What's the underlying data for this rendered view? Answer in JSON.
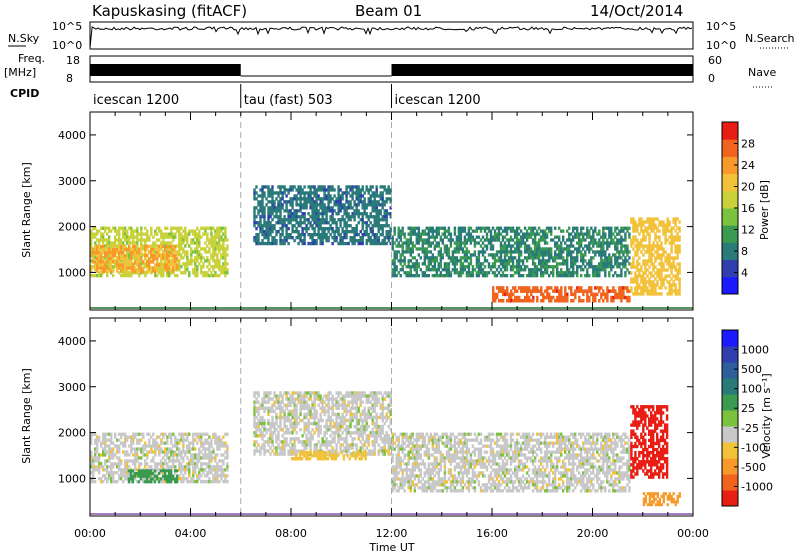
{
  "header": {
    "title": "Kapuskasing (fitACF)",
    "beam": "Beam 01",
    "date": "14/Oct/2014"
  },
  "summary_panel": {
    "nsky_label": "N.Sky",
    "nsky_ticks": [
      "10^5",
      "10^0"
    ],
    "nsearch_label": "N.Search",
    "nsearch_ticks": [
      "10^5",
      "10^0"
    ],
    "freq_label": "Freq.",
    "freq_unit": "[MHz]",
    "freq_ticks": [
      "18",
      "8"
    ],
    "nave_label": "Nave",
    "nave_ticks": [
      "60",
      "0"
    ],
    "cpid_label": "CPID"
  },
  "cpid_segments": [
    {
      "label": "icescan 1200",
      "start_h": 0,
      "end_h": 6
    },
    {
      "label": "tau (fast) 503",
      "start_h": 6,
      "end_h": 12
    },
    {
      "label": "icescan 1200",
      "start_h": 12,
      "end_h": 24
    }
  ],
  "time_axis": {
    "label": "Time UT",
    "ticks": [
      "00:00",
      "04:00",
      "08:00",
      "12:00",
      "16:00",
      "20:00",
      "00:00"
    ],
    "tick_hours": [
      0,
      4,
      8,
      12,
      16,
      20,
      24
    ]
  },
  "range_axis": {
    "label": "Slant Range [km]",
    "ticks": [
      "1000",
      "2000",
      "3000",
      "4000"
    ],
    "tick_values": [
      1000,
      2000,
      3000,
      4000
    ],
    "range": [
      180,
      4500
    ]
  },
  "power_scale": {
    "label": "Power [dB]",
    "ticks": [
      "28",
      "24",
      "20",
      "16",
      "12",
      "8",
      "4"
    ],
    "colors": [
      "#1a1aff",
      "#2f3fb0",
      "#2a7a7a",
      "#3a9a4f",
      "#7cc23e",
      "#c9d23a",
      "#f2c23a",
      "#f79a2a",
      "#f0641e",
      "#e81e14"
    ]
  },
  "velocity_scale": {
    "label": "Velocity  [m s⁻¹]",
    "ticks": [
      "1000",
      "500",
      "100",
      "25",
      "-25",
      "-100",
      "-500",
      "-1000"
    ],
    "colors": [
      "#1a1aff",
      "#2f3fb0",
      "#2f5f9a",
      "#2a7a7a",
      "#3a9a4f",
      "#7cc23e",
      "#c8c8c8",
      "#f2c23a",
      "#f79a2a",
      "#f0641e",
      "#e81e14"
    ]
  },
  "chart_data": {
    "type": "heatmap",
    "x_unit": "hours UT",
    "y_unit": "km",
    "xlim": [
      0,
      24
    ],
    "ylim": [
      180,
      4500
    ],
    "panels": [
      {
        "name": "Power",
        "regions": [
          {
            "start_h": 0.0,
            "end_h": 5.5,
            "range_lo": 900,
            "range_hi": 2000,
            "value": 16
          },
          {
            "start_h": 0.0,
            "end_h": 3.5,
            "range_lo": 1000,
            "range_hi": 1600,
            "value": 22
          },
          {
            "start_h": 6.5,
            "end_h": 12.0,
            "range_lo": 1600,
            "range_hi": 2900,
            "value": 6
          },
          {
            "start_h": 12.0,
            "end_h": 21.5,
            "range_lo": 900,
            "range_hi": 2000,
            "value": 8
          },
          {
            "start_h": 16.0,
            "end_h": 21.5,
            "range_lo": 350,
            "range_hi": 700,
            "value": 27
          },
          {
            "start_h": 21.5,
            "end_h": 23.5,
            "range_lo": 500,
            "range_hi": 2200,
            "value": 20
          }
        ]
      },
      {
        "name": "Velocity",
        "regions": [
          {
            "start_h": 0.0,
            "end_h": 5.5,
            "range_lo": 900,
            "range_hi": 2000,
            "value": 0
          },
          {
            "start_h": 1.5,
            "end_h": 3.5,
            "range_lo": 900,
            "range_hi": 1200,
            "value": 100
          },
          {
            "start_h": 6.5,
            "end_h": 12.0,
            "range_lo": 1500,
            "range_hi": 2900,
            "value": 0
          },
          {
            "start_h": 8.0,
            "end_h": 11.0,
            "range_lo": 1400,
            "range_hi": 1600,
            "value": -100
          },
          {
            "start_h": 12.0,
            "end_h": 21.5,
            "range_lo": 700,
            "range_hi": 2000,
            "value": 0
          },
          {
            "start_h": 21.5,
            "end_h": 23.0,
            "range_lo": 1000,
            "range_hi": 2600,
            "value": -1000
          },
          {
            "start_h": 22.0,
            "end_h": 23.5,
            "range_lo": 400,
            "range_hi": 700,
            "value": -500
          }
        ]
      }
    ]
  }
}
